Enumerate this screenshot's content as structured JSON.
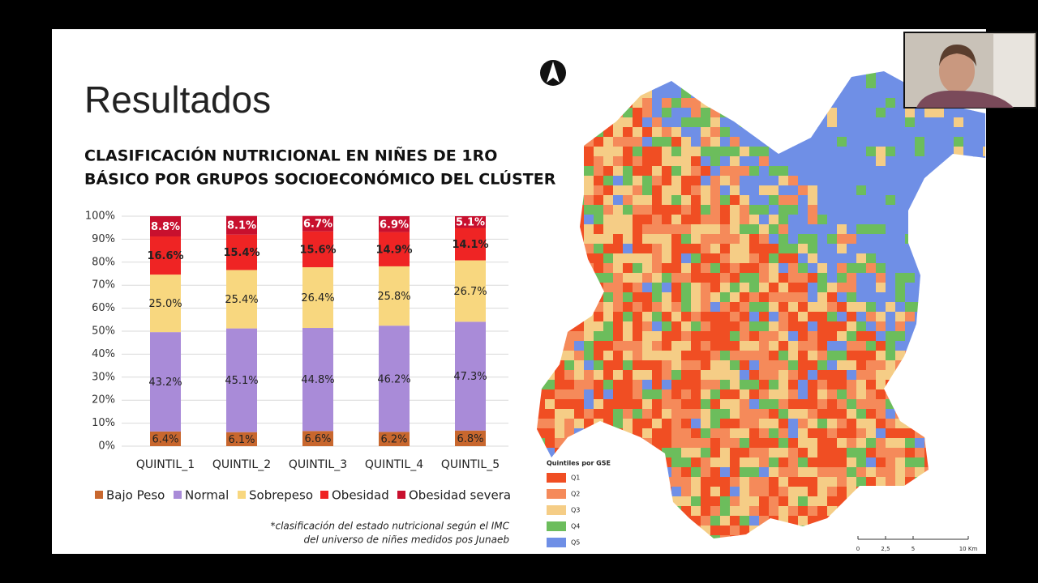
{
  "slide": {
    "title": "Resultados",
    "footnote": [
      "*clasificación del estado nutricional según el IMC",
      "del universo de niñes medidos pos Junaeb"
    ]
  },
  "map": {
    "legend_title": "Quintiles por GSE",
    "legend": [
      {
        "label": "Q1",
        "color": "#f04e23"
      },
      {
        "label": "Q2",
        "color": "#f58a5a"
      },
      {
        "label": "Q3",
        "color": "#f5cd86"
      },
      {
        "label": "Q4",
        "color": "#6cbd5c"
      },
      {
        "label": "Q5",
        "color": "#6f8fe6"
      }
    ],
    "scale": [
      "0",
      "2,5",
      "5",
      "10 Km"
    ]
  },
  "chart_data": {
    "type": "stacked_bar",
    "title": [
      "CLASIFICACIÓN NUTRICIONAL EN NIÑES DE 1RO",
      "BÁSICO POR GRUPOS SOCIOECONÓMICO DEL CLÚSTER"
    ],
    "categories": [
      "QUINTIL_1",
      "QUINTIL_2",
      "QUINTIL_3",
      "QUINTIL_4",
      "QUINTIL_5"
    ],
    "series": [
      {
        "name": "Bajo Peso",
        "color": "#c8672e",
        "values": [
          6.4,
          6.1,
          6.6,
          6.2,
          6.8
        ],
        "value_labels": [
          "6.4%",
          "6.1%",
          "6.6%",
          "6.2%",
          "6.8%"
        ]
      },
      {
        "name": "Normal",
        "color": "#a98bd8",
        "values": [
          43.2,
          45.1,
          44.8,
          46.2,
          47.3
        ],
        "value_labels": [
          "43.2%",
          "45.1%",
          "44.8%",
          "46.2%",
          "47.3%"
        ]
      },
      {
        "name": "Sobrepeso",
        "color": "#f8d77f",
        "values": [
          25.0,
          25.4,
          26.4,
          25.8,
          26.7
        ],
        "value_labels": [
          "25.0%",
          "25.4%",
          "26.4%",
          "25.8%",
          "26.7%"
        ]
      },
      {
        "name": "Obesidad",
        "color": "#ef2424",
        "values": [
          16.6,
          15.4,
          15.6,
          14.9,
          14.1
        ],
        "value_labels": [
          "16.6%",
          "15.4%",
          "15.6%",
          "14.9%",
          "14.1%"
        ]
      },
      {
        "name": "Obesidad severa",
        "color": "#c8102e",
        "values": [
          8.8,
          8.1,
          6.7,
          6.9,
          5.1
        ],
        "value_labels": [
          "8.8%",
          "8.1%",
          "6.7%",
          "6.9%",
          "5.1%"
        ]
      }
    ],
    "ylim": [
      0,
      100
    ],
    "yticks": [
      {
        "value": 0,
        "label": "0%"
      },
      {
        "value": 10,
        "label": "10%"
      },
      {
        "value": 20,
        "label": "20%"
      },
      {
        "value": 30,
        "label": "30%"
      },
      {
        "value": 40,
        "label": "40%"
      },
      {
        "value": 50,
        "label": "50%"
      },
      {
        "value": 60,
        "label": "60%"
      },
      {
        "value": 70,
        "label": "70%"
      },
      {
        "value": 80,
        "label": "80%"
      },
      {
        "value": 90,
        "label": "90%"
      },
      {
        "value": 100,
        "label": "100%"
      }
    ],
    "grid": true,
    "legend": "bottom"
  }
}
